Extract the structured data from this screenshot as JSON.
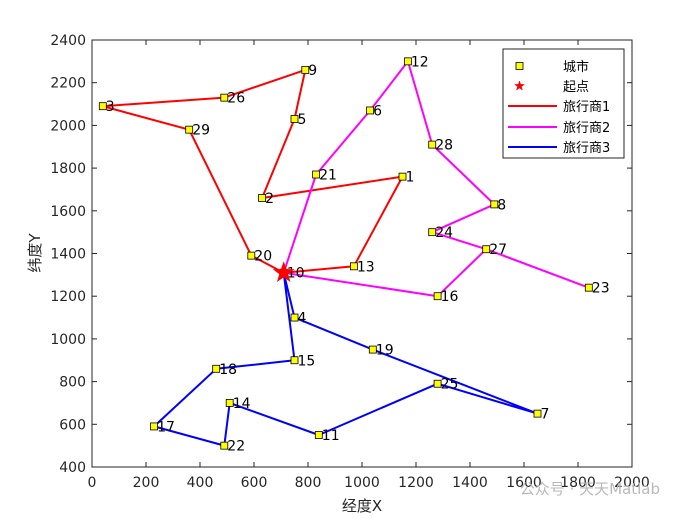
{
  "chart_data": {
    "type": "line",
    "xlabel": "经度X",
    "ylabel": "纬度Y",
    "xlim": [
      0,
      2000
    ],
    "ylim": [
      400,
      2400
    ],
    "xticks": [
      0,
      200,
      400,
      600,
      800,
      1000,
      1200,
      1400,
      1600,
      1800,
      2000
    ],
    "yticks": [
      400,
      600,
      800,
      1000,
      1200,
      1400,
      1600,
      1800,
      2000,
      2200,
      2400
    ],
    "grid": false,
    "legend_position": "top-right",
    "legend": [
      {
        "kind": "marker",
        "label": "城市",
        "color": "#ffff00"
      },
      {
        "kind": "star",
        "label": "起点",
        "color": "#ff0000"
      },
      {
        "kind": "line",
        "label": "旅行商1",
        "color": "#ff0000"
      },
      {
        "kind": "line",
        "label": "旅行商2",
        "color": "#ff00ff"
      },
      {
        "kind": "line",
        "label": "旅行商3",
        "color": "#0000ff"
      }
    ],
    "start": {
      "city": "10",
      "x": 710,
      "y": 1310
    },
    "cities": [
      {
        "id": "1",
        "x": 1150,
        "y": 1760
      },
      {
        "id": "2",
        "x": 630,
        "y": 1660
      },
      {
        "id": "3",
        "x": 40,
        "y": 2090
      },
      {
        "id": "4",
        "x": 750,
        "y": 1100
      },
      {
        "id": "5",
        "x": 750,
        "y": 2030
      },
      {
        "id": "6",
        "x": 1030,
        "y": 2070
      },
      {
        "id": "7",
        "x": 1650,
        "y": 650
      },
      {
        "id": "8",
        "x": 1490,
        "y": 1630
      },
      {
        "id": "9",
        "x": 790,
        "y": 2260
      },
      {
        "id": "10",
        "x": 710,
        "y": 1310
      },
      {
        "id": "11",
        "x": 840,
        "y": 550
      },
      {
        "id": "12",
        "x": 1170,
        "y": 2300
      },
      {
        "id": "13",
        "x": 970,
        "y": 1340
      },
      {
        "id": "14",
        "x": 510,
        "y": 700
      },
      {
        "id": "15",
        "x": 750,
        "y": 900
      },
      {
        "id": "16",
        "x": 1280,
        "y": 1200
      },
      {
        "id": "17",
        "x": 230,
        "y": 590
      },
      {
        "id": "18",
        "x": 460,
        "y": 860
      },
      {
        "id": "19",
        "x": 1040,
        "y": 950
      },
      {
        "id": "20",
        "x": 590,
        "y": 1390
      },
      {
        "id": "21",
        "x": 830,
        "y": 1770
      },
      {
        "id": "22",
        "x": 490,
        "y": 500
      },
      {
        "id": "23",
        "x": 1840,
        "y": 1240
      },
      {
        "id": "24",
        "x": 1260,
        "y": 1500
      },
      {
        "id": "25",
        "x": 1280,
        "y": 790
      },
      {
        "id": "26",
        "x": 490,
        "y": 2130
      },
      {
        "id": "27",
        "x": 1460,
        "y": 1420
      },
      {
        "id": "28",
        "x": 1260,
        "y": 1910
      },
      {
        "id": "29",
        "x": 360,
        "y": 1980
      }
    ],
    "routes": [
      {
        "name": "旅行商1",
        "color": "#ff0000",
        "path": [
          "10",
          "13",
          "1",
          "2",
          "5",
          "9",
          "26",
          "3",
          "29",
          "20",
          "10"
        ]
      },
      {
        "name": "旅行商2",
        "color": "#ff00ff",
        "path": [
          "10",
          "21",
          "6",
          "12",
          "28",
          "8",
          "24",
          "27",
          "23",
          "27",
          "16",
          "10"
        ]
      },
      {
        "name": "旅行商3",
        "color": "#0000ff",
        "path": [
          "10",
          "4",
          "19",
          "7",
          "25",
          "11",
          "14",
          "22",
          "17",
          "18",
          "15",
          "10"
        ]
      }
    ]
  },
  "watermark": {
    "text": "公众号 · 天天Matlab"
  }
}
